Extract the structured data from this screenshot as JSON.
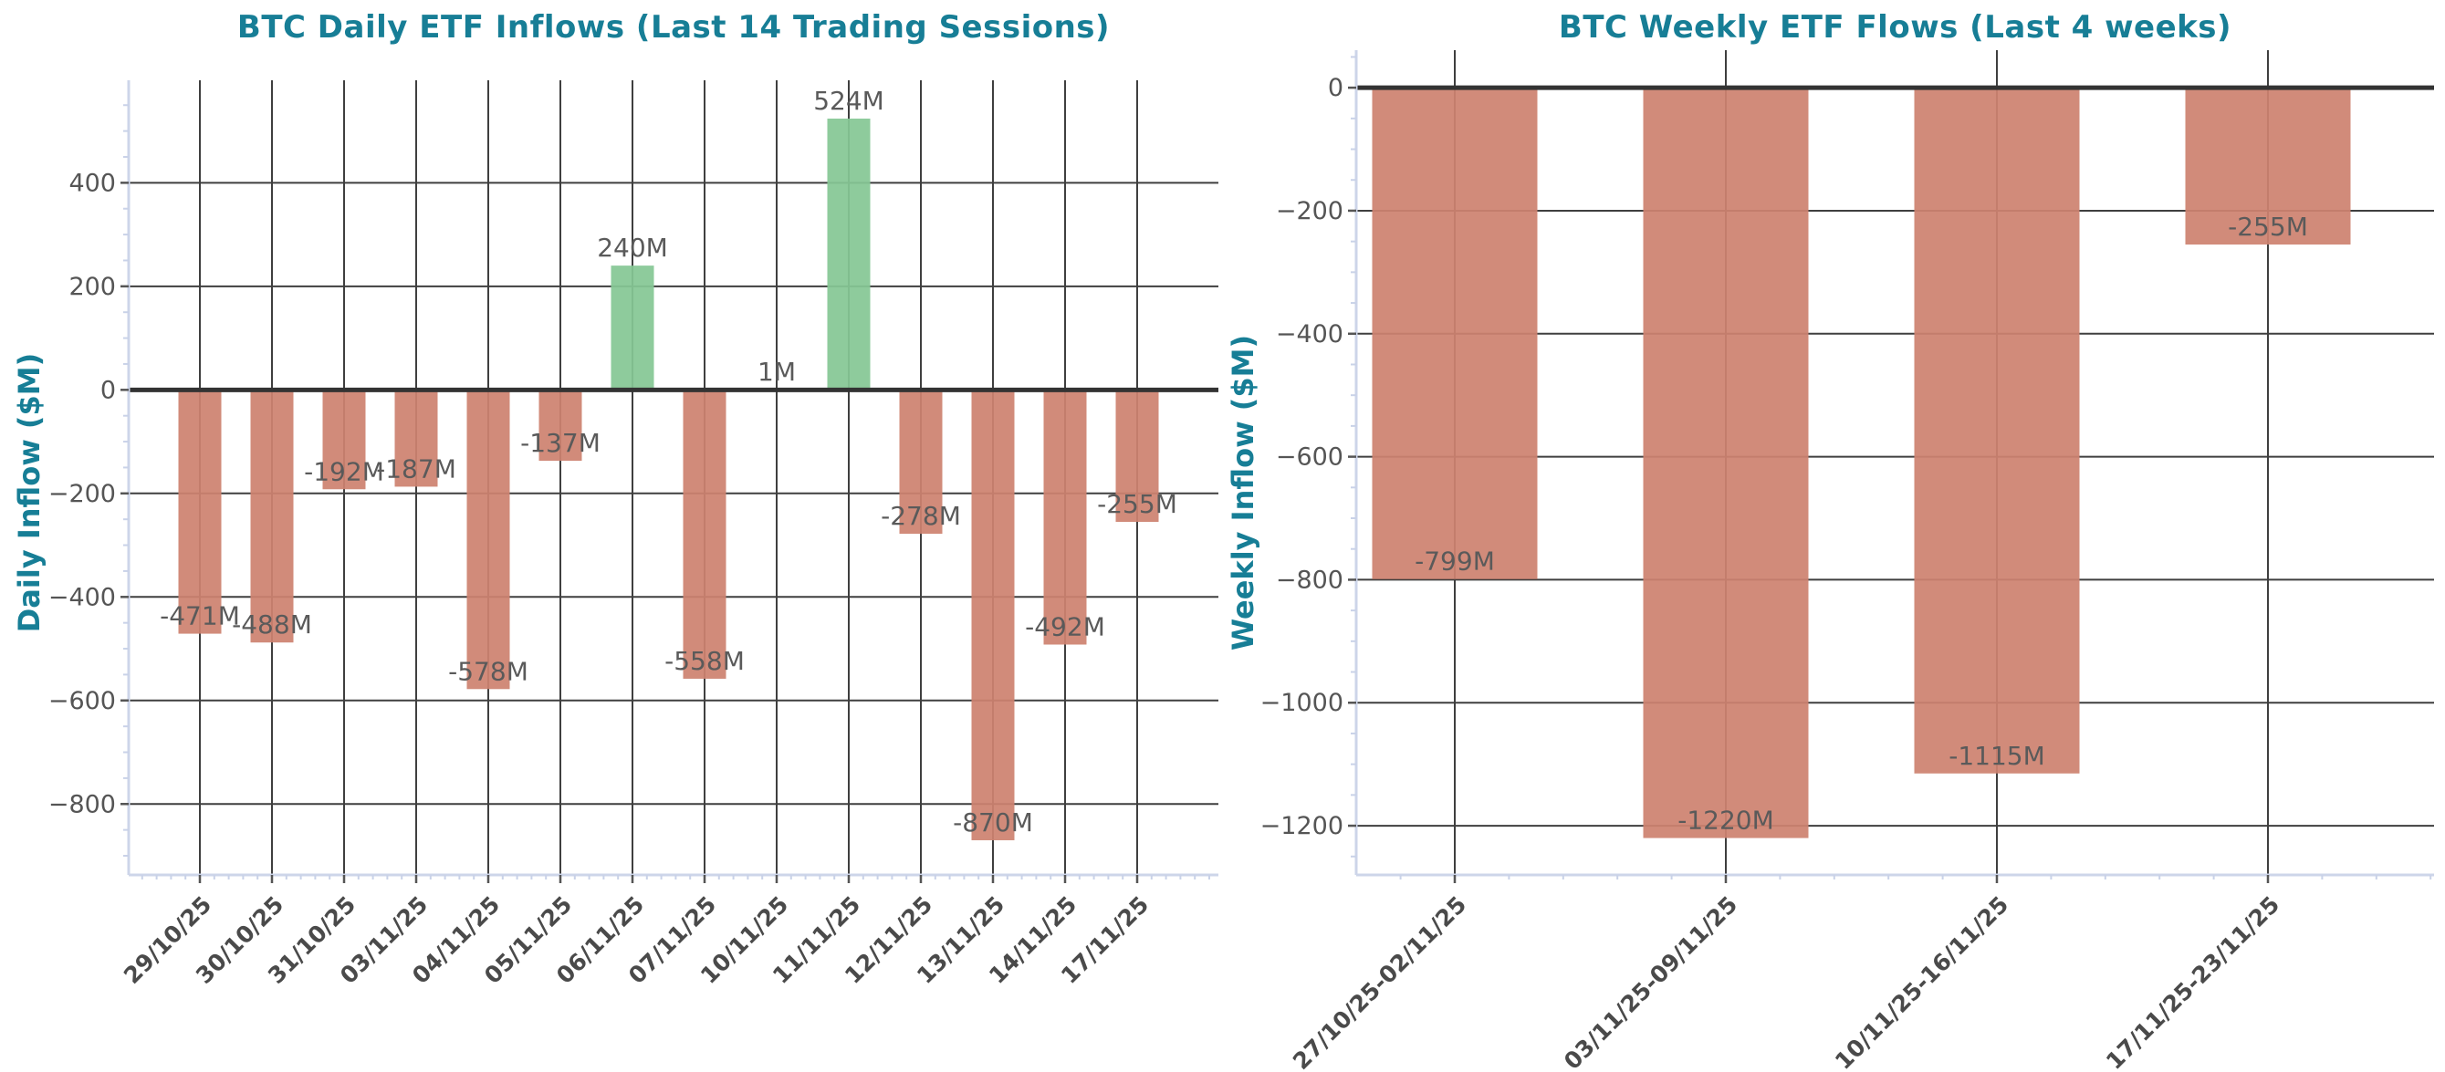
{
  "figure": {
    "background": "#ffffff"
  },
  "theme": {
    "title_color": "#177e96",
    "axis_label_color": "#177e96",
    "tick_color": "#555555",
    "major_tick_color": "#555555",
    "minor_tick_color": "#c9d2e8",
    "value_label_color": "#5a5a5a",
    "x_tick_label_color": "#4a4a4a",
    "grid_color": "#3f3f3f",
    "zero_line_color": "#333333",
    "spine_color": "#cdd5e9",
    "positive_bar_color": "#85c795",
    "negative_bar_color": "#cd8270"
  },
  "chart_data": [
    {
      "type": "bar",
      "title": "BTC Daily ETF Inflows (Last 14 Trading Sessions)",
      "xlabel": "",
      "ylabel": "Daily Inflow ($M)",
      "categories": [
        "29/10/25",
        "30/10/25",
        "31/10/25",
        "03/11/25",
        "04/11/25",
        "05/11/25",
        "06/11/25",
        "07/11/25",
        "10/11/25",
        "11/11/25",
        "12/11/25",
        "13/11/25",
        "14/11/25",
        "17/11/25"
      ],
      "values": [
        -471,
        -488,
        -192,
        -187,
        -578,
        -137,
        240,
        -558,
        1,
        524,
        -278,
        -870,
        -492,
        -255
      ],
      "bar_labels": [
        "-471M",
        "-488M",
        "-192M",
        "-187M",
        "-578M",
        "-137M",
        "240M",
        "-558M",
        "1M",
        "524M",
        "-278M",
        "-870M",
        "-492M",
        "-255M"
      ],
      "yticks": [
        400,
        200,
        0,
        -200,
        -400,
        -600,
        -800
      ],
      "ylim": [
        -937,
        598
      ],
      "grid": true,
      "legend": null,
      "positive_color": "#85c795",
      "negative_color": "#cd8270"
    },
    {
      "type": "bar",
      "title": "BTC Weekly ETF Flows (Last 4 weeks)",
      "xlabel": "",
      "ylabel": "Weekly Inflow ($M)",
      "categories": [
        "27/10/25-02/11/25",
        "03/11/25-09/11/25",
        "10/11/25-16/11/25",
        "17/11/25-23/11/25"
      ],
      "values": [
        -799,
        -1220,
        -1115,
        -255
      ],
      "bar_labels": [
        "-799M",
        "-1220M",
        "-1115M",
        "-255M"
      ],
      "yticks": [
        0,
        -200,
        -400,
        -600,
        -800,
        -1000,
        -1200
      ],
      "ylim": [
        -1280,
        61
      ],
      "grid": true,
      "legend": null,
      "positive_color": "#85c795",
      "negative_color": "#cd8270"
    }
  ]
}
